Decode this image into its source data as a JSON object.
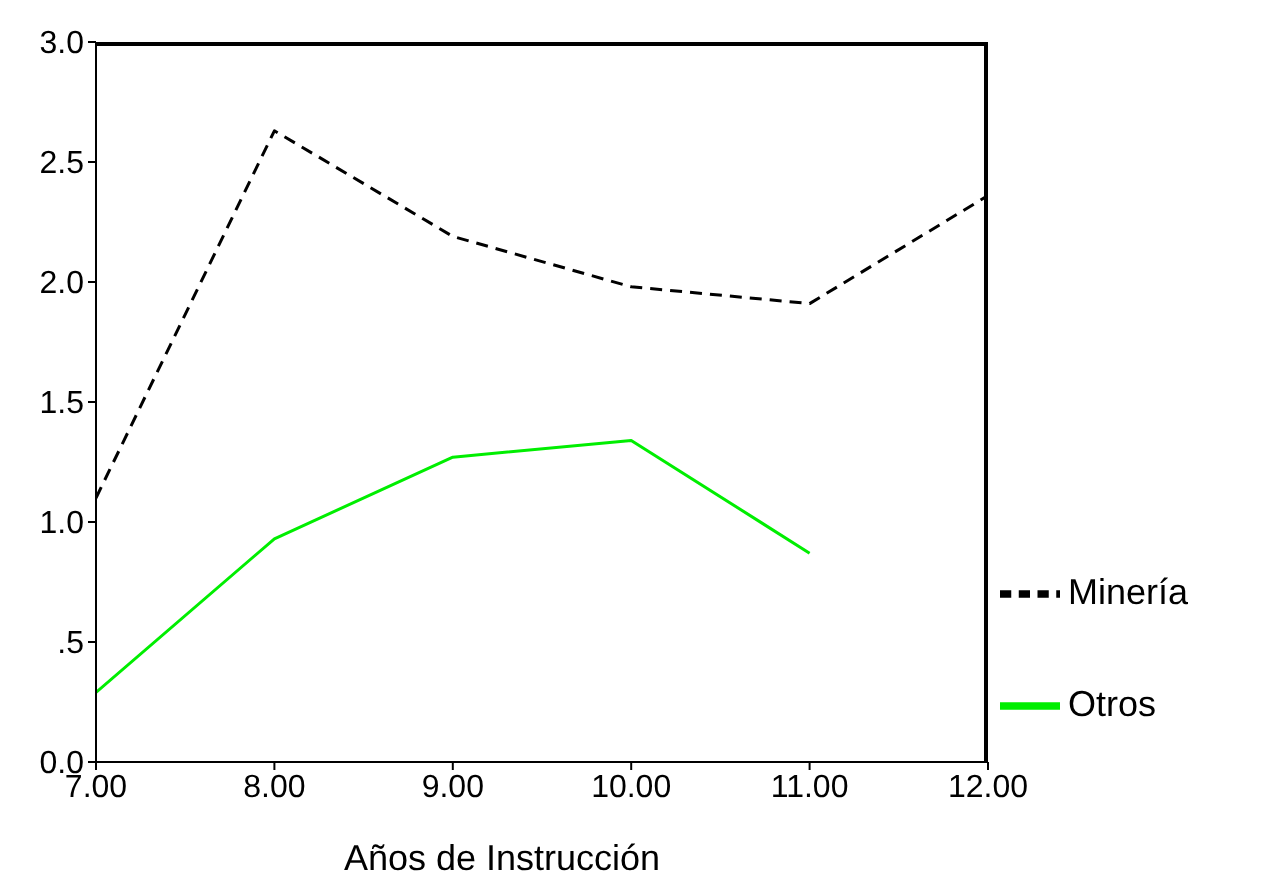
{
  "chart_data": {
    "type": "line",
    "xlabel": "Años de Instrucción",
    "x": [
      7,
      8,
      9,
      10,
      11,
      12
    ],
    "series": [
      {
        "name": "Minería",
        "color": "#000000",
        "line_style": "dashed",
        "values": [
          1.1,
          2.63,
          2.19,
          1.98,
          1.91,
          2.36
        ]
      },
      {
        "name": "Otros",
        "color": "#00ee00",
        "line_style": "solid",
        "values": [
          0.29,
          0.93,
          1.27,
          1.34,
          0.87,
          null
        ]
      }
    ],
    "xlim": [
      7,
      12
    ],
    "xticks": [
      {
        "value": 7,
        "label": "7.00"
      },
      {
        "value": 8,
        "label": "8.00"
      },
      {
        "value": 9,
        "label": "9.00"
      },
      {
        "value": 10,
        "label": "10.00"
      },
      {
        "value": 11,
        "label": "11.00"
      },
      {
        "value": 12,
        "label": "12.00"
      }
    ],
    "ylim": [
      0,
      3
    ],
    "yticks": [
      {
        "value": 0,
        "label": "0.0"
      },
      {
        "value": 0.5,
        "label": ".5"
      },
      {
        "value": 1,
        "label": "1.0"
      },
      {
        "value": 1.5,
        "label": "1.5"
      },
      {
        "value": 2,
        "label": "2.0"
      },
      {
        "value": 2.5,
        "label": "2.5"
      },
      {
        "value": 3,
        "label": "3.0"
      }
    ],
    "grid": false,
    "legend": "right",
    "marker": "none"
  }
}
